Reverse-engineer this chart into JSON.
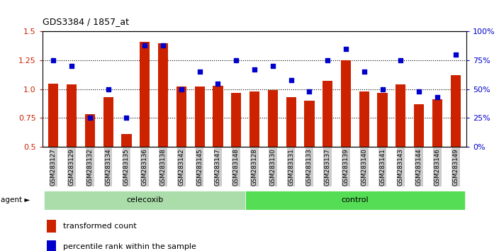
{
  "title": "GDS3384 / 1857_at",
  "samples": [
    "GSM283127",
    "GSM283129",
    "GSM283132",
    "GSM283134",
    "GSM283135",
    "GSM283136",
    "GSM283138",
    "GSM283142",
    "GSM283145",
    "GSM283147",
    "GSM283148",
    "GSM283128",
    "GSM283130",
    "GSM283131",
    "GSM283133",
    "GSM283137",
    "GSM283139",
    "GSM283140",
    "GSM283141",
    "GSM283143",
    "GSM283144",
    "GSM283146",
    "GSM283149"
  ],
  "bar_values": [
    1.05,
    1.04,
    0.78,
    0.93,
    0.61,
    1.41,
    1.4,
    1.02,
    1.02,
    1.03,
    0.97,
    0.98,
    0.99,
    0.93,
    0.9,
    1.07,
    1.25,
    0.98,
    0.97,
    1.04,
    0.87,
    0.91,
    1.12
  ],
  "dot_values": [
    75,
    70,
    25,
    50,
    25,
    88,
    88,
    50,
    65,
    55,
    75,
    67,
    70,
    58,
    48,
    75,
    85,
    65,
    50,
    75,
    48,
    43,
    80
  ],
  "celecoxib_count": 11,
  "control_count": 12,
  "bar_color": "#cc2200",
  "dot_color": "#0000cc",
  "background_color": "#ffffff",
  "ylim_left": [
    0.5,
    1.5
  ],
  "ylim_right": [
    0,
    100
  ],
  "yticks_left": [
    0.5,
    0.75,
    1.0,
    1.25,
    1.5
  ],
  "yticks_right": [
    0,
    25,
    50,
    75,
    100
  ],
  "ytick_labels_left": [
    "0.5",
    "0.75",
    "1.0",
    "1.25",
    "1.5"
  ],
  "ytick_labels_right": [
    "0%",
    "25%",
    "50%",
    "75%",
    "100%"
  ],
  "agent_label": "agent",
  "group1_label": "celecoxib",
  "group2_label": "control",
  "legend_bar": "transformed count",
  "legend_dot": "percentile rank within the sample",
  "group1_color": "#aaddaa",
  "group2_color": "#55dd55"
}
